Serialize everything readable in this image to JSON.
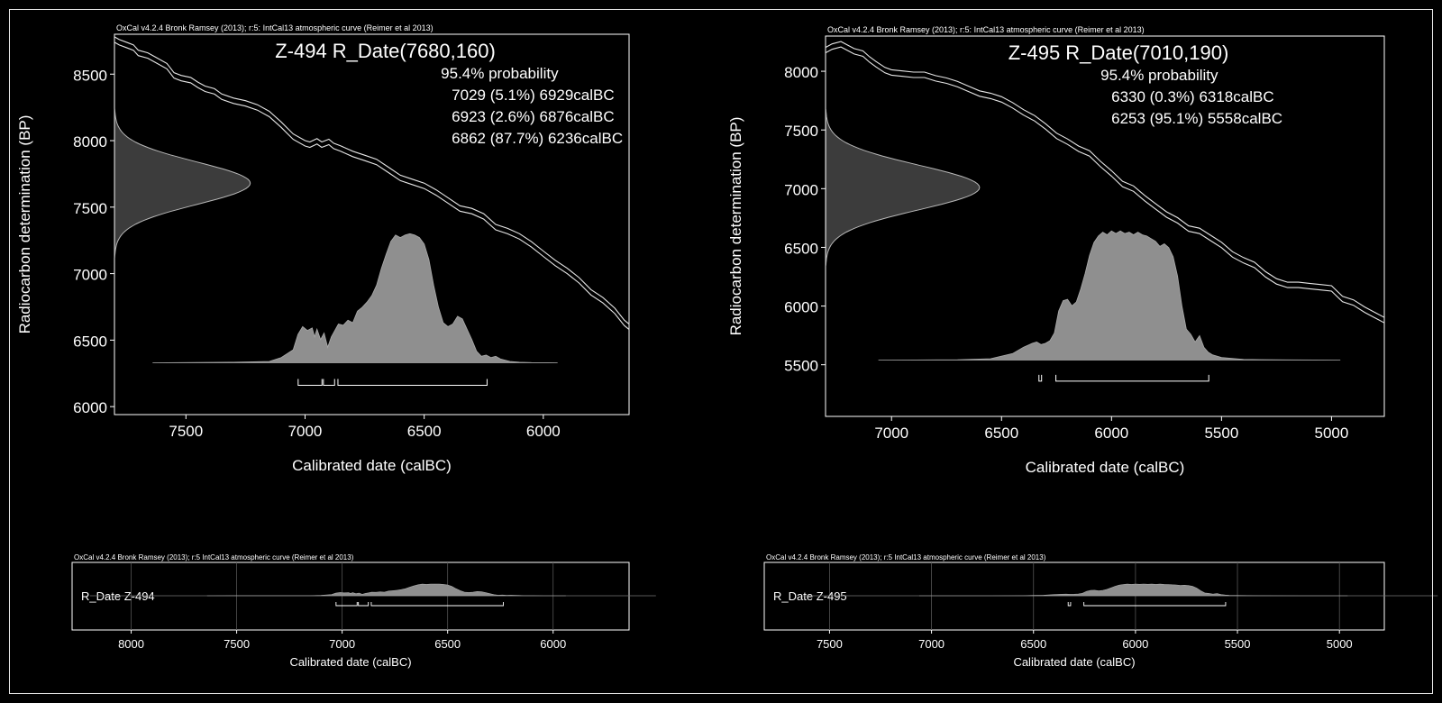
{
  "colors": {
    "background": "#000000",
    "foreground": "#ffffff",
    "fill": "#8f8f8f",
    "curve": "#e6e6e6"
  },
  "chart_data": [
    {
      "type": "area",
      "panel": "main",
      "header": "OxCal v4.2.4 Bronk Ramsey (2013); r:5: IntCal13 atmospheric curve (Reimer et al 2013)",
      "title": "Z-494 R_Date(7680,160)",
      "annotation_lines": [
        "95.4% probability",
        "7029 (5.1%) 6929calBC",
        "6923 (2.6%) 6876calBC",
        "6862 (87.7%) 6236calBC"
      ],
      "xlabel": "Calibrated date (calBC)",
      "ylabel": "Radiocarbon determination (BP)",
      "xlim": [
        7800,
        5640
      ],
      "ylim": [
        5940,
        8800
      ],
      "xticks": [
        7500,
        7000,
        6500,
        6000
      ],
      "yticks": [
        6000,
        6500,
        7000,
        7500,
        8000,
        8500
      ],
      "calibration_curve": {
        "x": [
          7800,
          7780,
          7750,
          7720,
          7700,
          7660,
          7620,
          7580,
          7550,
          7520,
          7480,
          7450,
          7420,
          7380,
          7350,
          7300,
          7250,
          7200,
          7150,
          7100,
          7050,
          7000,
          6980,
          6950,
          6930,
          6900,
          6880,
          6850,
          6800,
          6750,
          6700,
          6650,
          6600,
          6550,
          6500,
          6450,
          6400,
          6350,
          6300,
          6250,
          6200,
          6150,
          6100,
          6050,
          6000,
          5950,
          5900,
          5850,
          5800,
          5750,
          5700,
          5660,
          5640
        ],
        "y": [
          8760,
          8740,
          8720,
          8700,
          8660,
          8640,
          8600,
          8560,
          8490,
          8470,
          8455,
          8420,
          8390,
          8370,
          8330,
          8300,
          8280,
          8250,
          8200,
          8120,
          8030,
          7980,
          7970,
          7995,
          7970,
          7990,
          7960,
          7940,
          7900,
          7870,
          7840,
          7780,
          7720,
          7690,
          7660,
          7610,
          7550,
          7490,
          7470,
          7430,
          7350,
          7320,
          7280,
          7220,
          7150,
          7080,
          7020,
          6950,
          6860,
          6800,
          6720,
          6630,
          6600
        ]
      },
      "radiocarbon_gaussian": {
        "mean": 7680,
        "sd": 160,
        "baseline_x": 7800,
        "peak_x": 7230
      },
      "posterior": {
        "baseline_y": 6330,
        "peak_y": 7300,
        "x": [
          7640,
          7300,
          7150,
          7100,
          7050,
          7030,
          7010,
          6990,
          6970,
          6960,
          6950,
          6935,
          6920,
          6905,
          6890,
          6875,
          6860,
          6840,
          6820,
          6800,
          6780,
          6760,
          6740,
          6720,
          6700,
          6680,
          6660,
          6640,
          6620,
          6600,
          6580,
          6560,
          6540,
          6520,
          6500,
          6480,
          6460,
          6440,
          6420,
          6400,
          6380,
          6360,
          6340,
          6320,
          6300,
          6280,
          6260,
          6240,
          6220,
          6200,
          6180,
          6160,
          6140,
          6100,
          6050,
          5980,
          5940
        ],
        "v": [
          0,
          0.004,
          0.01,
          0.04,
          0.1,
          0.22,
          0.28,
          0.25,
          0.27,
          0.2,
          0.26,
          0.18,
          0.23,
          0.12,
          0.2,
          0.25,
          0.3,
          0.29,
          0.33,
          0.31,
          0.4,
          0.43,
          0.47,
          0.52,
          0.6,
          0.73,
          0.84,
          0.94,
          0.99,
          0.97,
          0.99,
          1.0,
          0.99,
          0.97,
          0.92,
          0.8,
          0.6,
          0.43,
          0.31,
          0.28,
          0.3,
          0.36,
          0.34,
          0.26,
          0.18,
          0.09,
          0.05,
          0.06,
          0.04,
          0.05,
          0.03,
          0.02,
          0.01,
          0.004,
          0.001,
          0.0005,
          0
        ]
      },
      "ranges": [
        [
          7029,
          6929
        ],
        [
          6923,
          6876
        ],
        [
          6862,
          6236
        ]
      ],
      "range_bar_y": 6160
    },
    {
      "type": "area",
      "panel": "main",
      "header": "OxCal v4.2.4 Bronk Ramsey (2013); r:5: IntCal13 atmospheric curve (Reimer et al 2013)",
      "title": "Z-495 R_Date(7010,190)",
      "annotation_lines": [
        "95.4% probability",
        "6330 (0.3%) 6318calBC",
        "6253 (95.1%) 5558calBC"
      ],
      "xlabel": "Calibrated date (calBC)",
      "ylabel": "Radiocarbon determination (BP)",
      "xlim": [
        7300,
        4760
      ],
      "ylim": [
        5060,
        8300
      ],
      "xticks": [
        7000,
        6500,
        6000,
        5500,
        5000
      ],
      "yticks": [
        5500,
        6000,
        6500,
        7000,
        7500,
        8000
      ],
      "calibration_curve": {
        "x": [
          7300,
          7270,
          7230,
          7200,
          7170,
          7130,
          7100,
          7070,
          7030,
          7000,
          6950,
          6900,
          6850,
          6800,
          6750,
          6700,
          6650,
          6600,
          6550,
          6500,
          6450,
          6400,
          6350,
          6300,
          6250,
          6200,
          6150,
          6100,
          6050,
          6000,
          5950,
          5900,
          5850,
          5800,
          5750,
          5700,
          5650,
          5600,
          5550,
          5500,
          5450,
          5400,
          5350,
          5300,
          5250,
          5200,
          5150,
          5100,
          5050,
          5000,
          4950,
          4900,
          4850,
          4800,
          4760
        ],
        "y": [
          8180,
          8210,
          8230,
          8200,
          8170,
          8150,
          8100,
          8060,
          8010,
          7990,
          7980,
          7970,
          7970,
          7940,
          7920,
          7890,
          7850,
          7810,
          7790,
          7760,
          7710,
          7650,
          7600,
          7530,
          7450,
          7400,
          7340,
          7300,
          7210,
          7130,
          7040,
          7000,
          6920,
          6850,
          6780,
          6730,
          6660,
          6640,
          6580,
          6520,
          6440,
          6390,
          6350,
          6270,
          6210,
          6180,
          6180,
          6170,
          6160,
          6150,
          6060,
          6030,
          5970,
          5920,
          5880
        ]
      },
      "radiocarbon_gaussian": {
        "mean": 7010,
        "sd": 190,
        "baseline_x": 7300,
        "peak_x": 6600
      },
      "posterior": {
        "baseline_y": 5540,
        "peak_y": 6640,
        "x": [
          7060,
          6700,
          6550,
          6450,
          6400,
          6360,
          6340,
          6320,
          6300,
          6280,
          6260,
          6240,
          6220,
          6200,
          6180,
          6160,
          6140,
          6120,
          6100,
          6080,
          6060,
          6040,
          6020,
          6000,
          5980,
          5960,
          5940,
          5920,
          5900,
          5880,
          5860,
          5840,
          5820,
          5800,
          5780,
          5760,
          5740,
          5720,
          5700,
          5680,
          5660,
          5640,
          5620,
          5600,
          5580,
          5560,
          5540,
          5500,
          5400,
          5200,
          4960
        ],
        "v": [
          0,
          0.002,
          0.01,
          0.05,
          0.1,
          0.13,
          0.14,
          0.12,
          0.13,
          0.15,
          0.21,
          0.38,
          0.46,
          0.47,
          0.42,
          0.45,
          0.55,
          0.67,
          0.81,
          0.91,
          0.96,
          0.99,
          0.97,
          1.0,
          0.98,
          1.0,
          0.98,
          0.99,
          0.97,
          0.99,
          0.97,
          0.96,
          0.94,
          0.92,
          0.88,
          0.9,
          0.87,
          0.8,
          0.65,
          0.42,
          0.24,
          0.2,
          0.14,
          0.19,
          0.1,
          0.06,
          0.04,
          0.02,
          0.005,
          0.001,
          0
        ]
      },
      "ranges": [
        [
          6330,
          6318
        ],
        [
          6253,
          5558
        ]
      ],
      "range_bar_y": 5360
    },
    {
      "type": "area",
      "panel": "multiplot",
      "header": "OxCal v4.2.4 Bronk Ramsey (2013); r:5 IntCal13 atmospheric curve (Reimer et al 2013)",
      "label": "R_Date Z-494",
      "xlabel": "Calibrated date (calBC)",
      "xlim": [
        8280,
        5640
      ],
      "xticks": [
        8000,
        7500,
        7000,
        6500,
        6000
      ],
      "ranges": [
        [
          7029,
          6929
        ],
        [
          6923,
          6876
        ],
        [
          6862,
          6236
        ]
      ]
    },
    {
      "type": "area",
      "panel": "multiplot",
      "header": "OxCal v4.2.4 Bronk Ramsey (2013); r:5 IntCal13 atmospheric curve (Reimer et al 2013)",
      "label": "R_Date Z-495",
      "xlabel": "Calibrated date (calBC)",
      "xlim": [
        7820,
        4780
      ],
      "xticks": [
        7500,
        7000,
        6500,
        6000,
        5500,
        5000
      ],
      "ranges": [
        [
          6330,
          6318
        ],
        [
          6253,
          5558
        ]
      ]
    }
  ]
}
